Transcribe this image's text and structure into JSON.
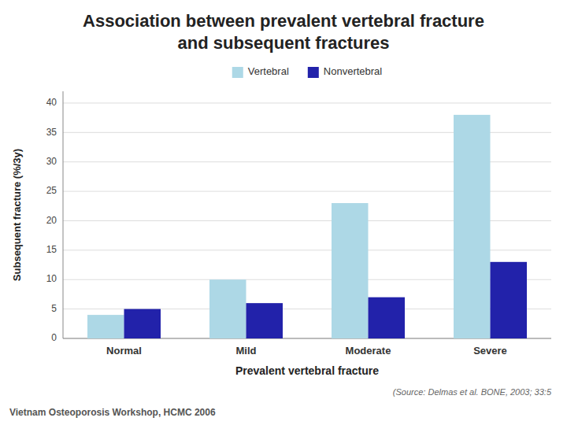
{
  "chart_data": {
    "type": "bar",
    "title": "Association between prevalent vertebral fracture and subsequent fractures",
    "categories": [
      "Normal",
      "Mild",
      "Moderate",
      "Severe"
    ],
    "series": [
      {
        "name": "Vertebral",
        "color": "#ADD8E6",
        "values": [
          4,
          10,
          23,
          38
        ]
      },
      {
        "name": "Nonvertebral",
        "color": "#2222AA",
        "values": [
          5,
          6,
          7,
          13
        ]
      }
    ],
    "x_label": "Prevalent vertebral fracture",
    "y_label": "Subsequent fracture (%/3y)",
    "ylim": [
      0,
      42
    ],
    "yticks": [
      0,
      5,
      10,
      15,
      20,
      25,
      30,
      35,
      40
    ],
    "grid": true,
    "legend": "top",
    "annotations": [
      "(Source: Delmas et al. BONE, 2003; 33:5",
      "Vietnam Osteoporosis Workshop, HCMC 2006"
    ]
  }
}
